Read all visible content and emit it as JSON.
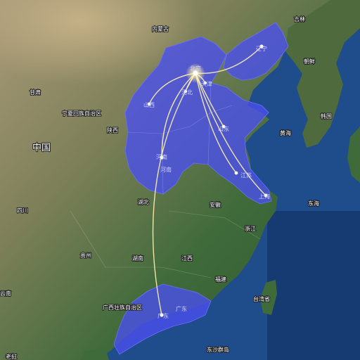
{
  "map": {
    "hub": "北京",
    "highlight_color": "#4a4ff0",
    "route_color": "#fff3b0",
    "routes": [
      "辽宁",
      "天津",
      "河北",
      "山西",
      "河南",
      "山东",
      "江苏",
      "上海",
      "广东"
    ],
    "countries": {
      "china": "中国",
      "korea": "韩国",
      "north_korea": "朝鲜"
    },
    "provinces_highlighted": {
      "beijing": "北京",
      "tianjin": "天津",
      "hebei": "河北",
      "shanxi": "山西",
      "henan": "河南",
      "shandong": "山东",
      "jiangsu": "江苏",
      "shanghai": "上海",
      "liaoning": "辽宁",
      "guangdong": "广东"
    },
    "provinces_other": {
      "neimenggu": "内蒙古",
      "ningxia": "宁夏回族自治区",
      "gansu": "甘肃",
      "shaanxi": "陕西",
      "sichuan": "四川",
      "hubei": "湖北",
      "anhui": "安徽",
      "zhejiang": "浙江",
      "guizhou": "贵州",
      "hunan": "湖南",
      "jiangxi": "江西",
      "fujian": "福建",
      "guangxi": "广西壮族自治区",
      "yunnan": "云南",
      "laos": "老挝",
      "taiwan": "台湾省",
      "jilin": "吉林"
    },
    "seas": {
      "yellow_sea": "黄海",
      "east_sea": "东海",
      "dongsha": "东沙群岛"
    }
  }
}
